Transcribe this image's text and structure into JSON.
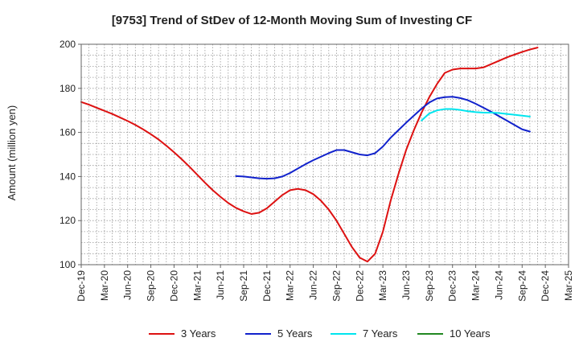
{
  "chart_data": {
    "type": "line",
    "title": "[9753]  Trend of StDev of 12-Month Moving Sum of Investing CF",
    "ylabel": "Amount (million yen)",
    "xlabel": "",
    "ylim": [
      100,
      200
    ],
    "yticks": [
      100,
      120,
      140,
      160,
      180,
      200
    ],
    "x_tick_labels": [
      "Dec-19",
      "Mar-20",
      "Jun-20",
      "Sep-20",
      "Dec-20",
      "Mar-21",
      "Jun-21",
      "Sep-21",
      "Dec-21",
      "Mar-22",
      "Jun-22",
      "Sep-22",
      "Dec-22",
      "Mar-23",
      "Jun-23",
      "Sep-23",
      "Dec-23",
      "Mar-24",
      "Jun-24",
      "Sep-24",
      "Dec-24",
      "Mar-25"
    ],
    "grid": true,
    "legend_position": "bottom",
    "series": [
      {
        "name": "3 Years",
        "color": "#dd1111",
        "values": [
          [
            "Dec-19",
            173.8
          ],
          [
            "Jan-20",
            172.6
          ],
          [
            "Feb-20",
            171.2
          ],
          [
            "Mar-20",
            169.8
          ],
          [
            "Apr-20",
            168.4
          ],
          [
            "May-20",
            166.8
          ],
          [
            "Jun-20",
            165.2
          ],
          [
            "Jul-20",
            163.4
          ],
          [
            "Aug-20",
            161.4
          ],
          [
            "Sep-20",
            159.2
          ],
          [
            "Oct-20",
            156.8
          ],
          [
            "Nov-20",
            154.0
          ],
          [
            "Dec-20",
            151.0
          ],
          [
            "Jan-21",
            147.8
          ],
          [
            "Feb-21",
            144.4
          ],
          [
            "Mar-21",
            140.8
          ],
          [
            "Apr-21",
            137.2
          ],
          [
            "May-21",
            133.8
          ],
          [
            "Jun-21",
            130.8
          ],
          [
            "Jul-21",
            128.0
          ],
          [
            "Aug-21",
            125.8
          ],
          [
            "Sep-21",
            124.2
          ],
          [
            "Oct-21",
            123.0
          ],
          [
            "Nov-21",
            123.6
          ],
          [
            "Dec-21",
            125.6
          ],
          [
            "Jan-22",
            128.6
          ],
          [
            "Feb-22",
            131.6
          ],
          [
            "Mar-22",
            133.8
          ],
          [
            "Apr-22",
            134.4
          ],
          [
            "May-22",
            133.8
          ],
          [
            "Jun-22",
            132.0
          ],
          [
            "Jul-22",
            129.0
          ],
          [
            "Aug-22",
            125.0
          ],
          [
            "Sep-22",
            120.0
          ],
          [
            "Oct-22",
            114.0
          ],
          [
            "Nov-22",
            108.0
          ],
          [
            "Dec-22",
            103.2
          ],
          [
            "Jan-23",
            101.4
          ],
          [
            "Feb-23",
            105.0
          ],
          [
            "Mar-23",
            115.0
          ],
          [
            "Apr-23",
            129.0
          ],
          [
            "May-23",
            141.0
          ],
          [
            "Jun-23",
            152.0
          ],
          [
            "Jul-23",
            161.0
          ],
          [
            "Aug-23",
            169.0
          ],
          [
            "Sep-23",
            176.0
          ],
          [
            "Oct-23",
            182.0
          ],
          [
            "Nov-23",
            187.0
          ],
          [
            "Dec-23",
            188.5
          ],
          [
            "Jan-24",
            189.0
          ],
          [
            "Feb-24",
            189.0
          ],
          [
            "Mar-24",
            189.0
          ],
          [
            "Apr-24",
            189.5
          ],
          [
            "May-24",
            191.0
          ],
          [
            "Jun-24",
            192.5
          ],
          [
            "Jul-24",
            194.0
          ],
          [
            "Aug-24",
            195.3
          ],
          [
            "Sep-24",
            196.5
          ],
          [
            "Oct-24",
            197.6
          ],
          [
            "Nov-24",
            198.5
          ]
        ]
      },
      {
        "name": "5 Years",
        "color": "#1122cc",
        "values": [
          [
            "Aug-21",
            140.2
          ],
          [
            "Sep-21",
            140.0
          ],
          [
            "Oct-21",
            139.6
          ],
          [
            "Nov-21",
            139.2
          ],
          [
            "Dec-21",
            139.0
          ],
          [
            "Jan-22",
            139.2
          ],
          [
            "Feb-22",
            140.0
          ],
          [
            "Mar-22",
            141.6
          ],
          [
            "Apr-22",
            143.6
          ],
          [
            "May-22",
            145.6
          ],
          [
            "Jun-22",
            147.4
          ],
          [
            "Jul-22",
            149.0
          ],
          [
            "Aug-22",
            150.6
          ],
          [
            "Sep-22",
            152.0
          ],
          [
            "Oct-22",
            152.0
          ],
          [
            "Nov-22",
            151.0
          ],
          [
            "Dec-22",
            150.0
          ],
          [
            "Jan-23",
            149.6
          ],
          [
            "Feb-23",
            150.6
          ],
          [
            "Mar-23",
            153.6
          ],
          [
            "Apr-23",
            157.6
          ],
          [
            "May-23",
            161.0
          ],
          [
            "Jun-23",
            164.4
          ],
          [
            "Jul-23",
            167.6
          ],
          [
            "Aug-23",
            170.8
          ],
          [
            "Sep-23",
            173.6
          ],
          [
            "Oct-23",
            175.4
          ],
          [
            "Nov-23",
            176.0
          ],
          [
            "Dec-23",
            176.2
          ],
          [
            "Jan-24",
            175.6
          ],
          [
            "Feb-24",
            174.6
          ],
          [
            "Mar-24",
            173.0
          ],
          [
            "Apr-24",
            171.2
          ],
          [
            "May-24",
            169.4
          ],
          [
            "Jun-24",
            167.4
          ],
          [
            "Jul-24",
            165.4
          ],
          [
            "Aug-24",
            163.4
          ],
          [
            "Sep-24",
            161.4
          ],
          [
            "Oct-24",
            160.4
          ]
        ]
      },
      {
        "name": "7 Years",
        "color": "#00e5ee",
        "values": [
          [
            "Aug-23",
            165.4
          ],
          [
            "Sep-23",
            168.6
          ],
          [
            "Oct-23",
            170.0
          ],
          [
            "Nov-23",
            170.6
          ],
          [
            "Dec-23",
            170.6
          ],
          [
            "Jan-24",
            170.2
          ],
          [
            "Feb-24",
            169.6
          ],
          [
            "Mar-24",
            169.2
          ],
          [
            "Apr-24",
            169.0
          ],
          [
            "May-24",
            169.0
          ],
          [
            "Jun-24",
            168.8
          ],
          [
            "Jul-24",
            168.4
          ],
          [
            "Aug-24",
            168.0
          ],
          [
            "Sep-24",
            167.6
          ],
          [
            "Oct-24",
            167.2
          ]
        ]
      },
      {
        "name": "10 Years",
        "color": "#228822",
        "values": []
      }
    ]
  }
}
